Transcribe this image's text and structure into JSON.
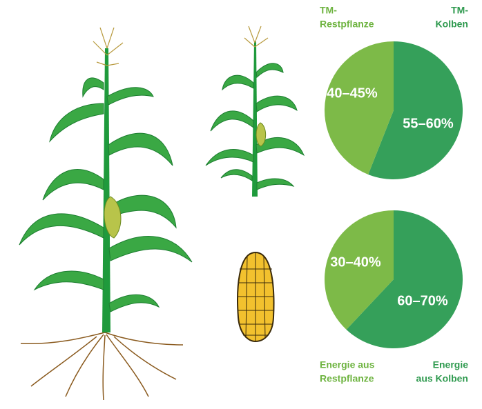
{
  "chart_data": [
    {
      "type": "pie",
      "categories": [
        [
          "TM-",
          "Restpflanze"
        ],
        [
          "TM-",
          "Kolben"
        ]
      ],
      "values": [
        44,
        56
      ],
      "value_labels": [
        "40–45%",
        "55–60%"
      ],
      "colors": [
        "#7dba48",
        "#35a05a"
      ]
    },
    {
      "type": "pie",
      "categories": [
        [
          "Energie aus",
          "Restpflanze"
        ],
        [
          "Energie",
          "aus Kolben"
        ]
      ],
      "values": [
        38,
        62
      ],
      "value_labels": [
        "30–40%",
        "60–70%"
      ],
      "colors": [
        "#7dba48",
        "#35a05a"
      ]
    }
  ]
}
